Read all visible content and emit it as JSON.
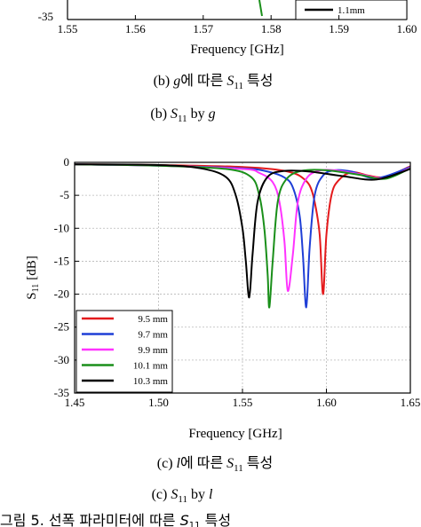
{
  "top_chart_fragment": {
    "y_tick_label": "-35",
    "x_ticks": [
      "1.55",
      "1.56",
      "1.57",
      "1.58",
      "1.59",
      "1.60"
    ],
    "xlabel": "Frequency [GHz]",
    "legend_visible_entry": "1.1mm",
    "caption_kr": {
      "prefix": "(b) ",
      "var": "g",
      "mid": "에 따른 ",
      "s": "S",
      "sub": "11",
      "suffix": " 특성"
    },
    "caption_en": {
      "prefix": "(b) ",
      "s": "S",
      "sub": "11",
      "mid": " by ",
      "var": "g"
    }
  },
  "chart_data": [
    {
      "type": "line",
      "xlabel": "Frequency [GHz]",
      "ylabel": "S11 [dB]",
      "ylabel_main": "S",
      "ylabel_sub": "11",
      "ylabel_unit": "[dB]",
      "xlim": [
        1.45,
        1.65
      ],
      "ylim": [
        -35,
        0
      ],
      "x_ticks": [
        {
          "v": 1.45,
          "label": "1.45"
        },
        {
          "v": 1.5,
          "label": "1.50"
        },
        {
          "v": 1.55,
          "label": "1.55"
        },
        {
          "v": 1.6,
          "label": "1.60"
        },
        {
          "v": 1.65,
          "label": "1.65"
        }
      ],
      "y_ticks": [
        {
          "v": 0,
          "label": "0"
        },
        {
          "v": -5,
          "label": "-5"
        },
        {
          "v": -10,
          "label": "-10"
        },
        {
          "v": -15,
          "label": "-15"
        },
        {
          "v": -20,
          "label": "-20"
        },
        {
          "v": -25,
          "label": "-25"
        },
        {
          "v": -30,
          "label": "-30"
        },
        {
          "v": -35,
          "label": "-35"
        }
      ],
      "grid": true,
      "legend_position": "bottom-left",
      "series": [
        {
          "name": "9.5 mm",
          "color": "#e41a1c",
          "x": [
            1.45,
            1.5,
            1.55,
            1.57,
            1.58,
            1.585,
            1.59,
            1.593,
            1.596,
            1.598,
            1.6,
            1.603,
            1.607,
            1.615,
            1.625,
            1.635,
            1.65
          ],
          "y": [
            -0.3,
            -0.4,
            -0.7,
            -1.1,
            -1.6,
            -2.2,
            -3.5,
            -6,
            -11,
            -20,
            -11,
            -5,
            -2.8,
            -1.5,
            -2.0,
            -2.2,
            -0.6
          ]
        },
        {
          "name": "9.7 mm",
          "color": "#1f3fd6",
          "x": [
            1.45,
            1.5,
            1.55,
            1.565,
            1.575,
            1.58,
            1.584,
            1.586,
            1.588,
            1.59,
            1.593,
            1.598,
            1.605,
            1.615,
            1.63,
            1.65
          ],
          "y": [
            -0.3,
            -0.5,
            -0.9,
            -1.4,
            -2.3,
            -3.8,
            -8,
            -14,
            -22,
            -13,
            -5,
            -2.0,
            -1.2,
            -1.4,
            -2.4,
            -0.7
          ]
        },
        {
          "name": "9.9 mm",
          "color": "#ff33ff",
          "x": [
            1.45,
            1.5,
            1.55,
            1.56,
            1.568,
            1.572,
            1.575,
            1.577,
            1.58,
            1.583,
            1.588,
            1.595,
            1.605,
            1.62,
            1.635,
            1.65
          ],
          "y": [
            -0.3,
            -0.5,
            -1.0,
            -1.6,
            -3,
            -6,
            -12,
            -19.5,
            -14,
            -6,
            -2.5,
            -1.3,
            -1.2,
            -1.8,
            -2.4,
            -0.8
          ]
        },
        {
          "name": "10.1 mm",
          "color": "#1a8f1a",
          "x": [
            1.45,
            1.5,
            1.54,
            1.555,
            1.56,
            1.563,
            1.565,
            1.566,
            1.568,
            1.571,
            1.576,
            1.585,
            1.6,
            1.62,
            1.635,
            1.65
          ],
          "y": [
            -0.3,
            -0.5,
            -1.0,
            -2.2,
            -5,
            -10,
            -17,
            -22,
            -15,
            -6,
            -2.6,
            -1.3,
            -1.2,
            -1.9,
            -2.5,
            -0.9
          ]
        },
        {
          "name": "10.3 mm",
          "color": "#000000",
          "x": [
            1.45,
            1.5,
            1.525,
            1.54,
            1.546,
            1.55,
            1.552,
            1.554,
            1.556,
            1.559,
            1.565,
            1.575,
            1.59,
            1.61,
            1.63,
            1.65
          ],
          "y": [
            -0.3,
            -0.4,
            -0.9,
            -2.2,
            -5,
            -10,
            -15,
            -20.5,
            -14,
            -6,
            -2.2,
            -1.3,
            -1.4,
            -2.1,
            -2.6,
            -1.0
          ]
        }
      ],
      "caption_kr": {
        "prefix": "(c) ",
        "var": "l",
        "mid": "에 따른 ",
        "s": "S",
        "sub": "11",
        "suffix": " 특성"
      },
      "caption_en": {
        "prefix": "(c) ",
        "s": "S",
        "sub": "11",
        "mid": " by ",
        "var": "l"
      }
    }
  ],
  "bottom_caption_fragment": {
    "prefix": "그림 5. 선폭 파라미터에 따른 ",
    "s": "S",
    "sub": "11",
    "suffix": " 특성"
  }
}
